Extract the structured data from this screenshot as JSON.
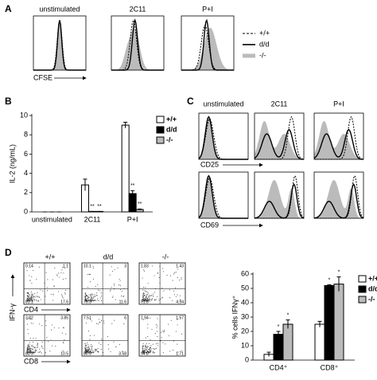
{
  "panel_a": {
    "label": "A",
    "conditions": [
      "unstimulated",
      "2C11",
      "P+I"
    ],
    "legend": [
      "+/+",
      "d/d",
      "-/-"
    ],
    "x_label": "CFSE"
  },
  "panel_c": {
    "label": "C",
    "conditions": [
      "unstimulated",
      "2C11",
      "P+I"
    ],
    "markers": [
      "CD25",
      "CD69"
    ]
  },
  "panel_d": {
    "label": "D",
    "genotypes": [
      "+/+",
      "d/d",
      "-/-"
    ],
    "y_label": "IFN-γ",
    "markers": [
      "CD4",
      "CD8"
    ],
    "quadrants": [
      [
        [
          "0.14",
          "1.1",
          "81.1",
          "17.6"
        ],
        [
          "10.1",
          "3",
          "75.3",
          "11.6"
        ],
        [
          "1.83",
          "1.43",
          "91.8",
          "4.94"
        ]
      ],
      [
        [
          "3.82",
          "3.85",
          "80.9",
          "10.5"
        ],
        [
          "7.51",
          "6",
          "80.9",
          "3.58"
        ],
        [
          "1.94",
          "1.57",
          "94.8",
          "1.71"
        ]
      ]
    ]
  },
  "chart_data": [
    {
      "type": "bar",
      "panel_label": "B",
      "y_label": "IL-2 (ng/mL)",
      "categories": [
        "unstimulated",
        "2C11",
        "P+I"
      ],
      "ylim": [
        0,
        10
      ],
      "yticks": [
        0,
        2,
        4,
        6,
        8,
        10
      ],
      "series": [
        {
          "name": "+/+",
          "color": "#ffffff",
          "values": [
            0,
            2.8,
            9.0
          ],
          "errors": [
            0,
            0.6,
            0.3
          ],
          "significance": [
            null,
            null,
            null
          ]
        },
        {
          "name": "d/d",
          "color": "#000000",
          "values": [
            0,
            0.05,
            1.9
          ],
          "errors": [
            0,
            0,
            0.3
          ],
          "significance": [
            null,
            "**",
            "**"
          ]
        },
        {
          "name": "-/-",
          "color": "#bbbbbb",
          "values": [
            0,
            0.05,
            0.25
          ],
          "errors": [
            0,
            0,
            0.05
          ],
          "significance": [
            null,
            "**",
            "**"
          ]
        }
      ]
    },
    {
      "type": "bar",
      "y_label": "% cells IFNγ⁺",
      "categories": [
        "CD4⁺",
        "CD8⁺"
      ],
      "ylim": [
        0,
        60
      ],
      "yticks": [
        0,
        10,
        20,
        30,
        40,
        50,
        60
      ],
      "series": [
        {
          "name": "+/+",
          "color": "#ffffff",
          "values": [
            4,
            25
          ],
          "errors": [
            1.5,
            2
          ],
          "significance": [
            null,
            null
          ]
        },
        {
          "name": "d/d",
          "color": "#000000",
          "values": [
            18,
            52
          ],
          "errors": [
            2,
            0.5
          ],
          "significance": [
            "*",
            "*"
          ]
        },
        {
          "name": "-/-",
          "color": "#bbbbbb",
          "values": [
            25,
            53
          ],
          "errors": [
            3,
            5
          ],
          "significance": [
            "*",
            "*"
          ]
        }
      ]
    }
  ]
}
